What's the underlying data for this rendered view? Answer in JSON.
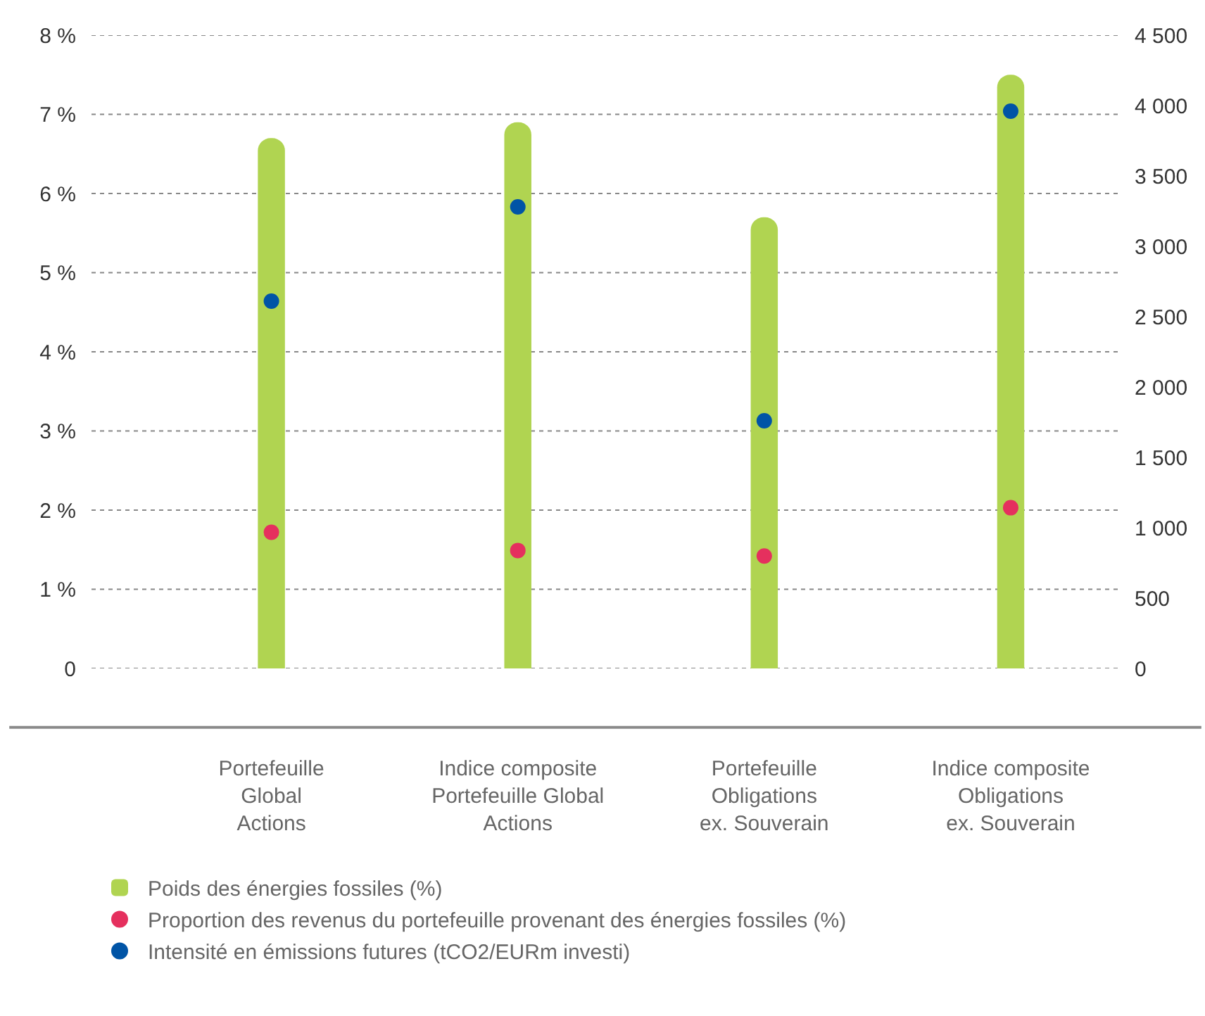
{
  "chart_data": {
    "type": "bar",
    "categories": [
      "Portefeuille\nGlobal\nActions",
      "Indice composite\nPortefeuille Global\nActions",
      "Portefeuille\nObligations\nex. Souverain",
      "Indice composite\nObligations\nex. Souverain"
    ],
    "series": [
      {
        "name": "Poids des énergies fossiles (%)",
        "color": "#b0d451",
        "values": [
          6.7,
          6.9,
          5.7,
          7.5
        ]
      },
      {
        "name": "Proportion des revenus du portefeuille provenant des énergies fossiles (%)",
        "type": "scatter",
        "color": "#e5305e",
        "values": [
          1.72,
          1.49,
          1.42,
          2.03
        ]
      },
      {
        "name": "Intensité en émissions futures (tCO2/EURm investi)",
        "type": "scatter",
        "axis": "y2",
        "color": "#0054a6",
        "values": [
          2610,
          3280,
          1760,
          3960
        ]
      }
    ],
    "ylim": [
      0,
      8
    ],
    "yticks": [
      0,
      {
        "value": 1,
        "label": "1 %"
      },
      {
        "value": 2,
        "label": "2 %"
      },
      {
        "value": 3,
        "label": "3 %"
      },
      {
        "value": 4,
        "label": "4 %"
      },
      {
        "value": 5,
        "label": "5 %"
      },
      {
        "value": 6,
        "label": "6 %"
      },
      {
        "value": 7,
        "label": "7 %"
      },
      {
        "value": 8,
        "label": "8 %"
      }
    ],
    "y2lim": [
      0,
      4500
    ],
    "y2ticks": [
      0,
      500,
      {
        "value": 1000,
        "label": "1 000"
      },
      {
        "value": 1500,
        "label": "1 500"
      },
      {
        "value": 2000,
        "label": "2 000"
      },
      {
        "value": 2500,
        "label": "2 500"
      },
      {
        "value": 3000,
        "label": "3 000"
      },
      {
        "value": 3500,
        "label": "3 500"
      },
      {
        "value": 4000,
        "label": "4 000"
      },
      {
        "value": 4500,
        "label": "4 500"
      }
    ],
    "grid": "y",
    "legend": "bottom left",
    "marker": "circle"
  }
}
